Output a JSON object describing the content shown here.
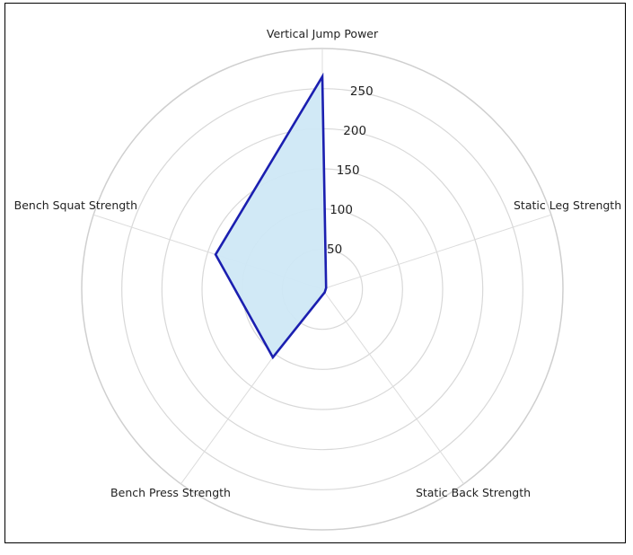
{
  "chart_data": {
    "type": "radar",
    "title": "",
    "axes": [
      "Vertical Jump Power",
      "Static Leg Strength",
      "Static Back Strength",
      "Bench Press Strength",
      "Bench Squat Strength"
    ],
    "series": [
      {
        "values": [
          265,
          5,
          5,
          105,
          140
        ],
        "color": "#1b1fb0",
        "fill": "#cfe8f6"
      }
    ],
    "rlim": [
      0,
      300
    ],
    "ring_values": [
      50,
      100,
      150,
      200,
      250,
      300
    ],
    "tick_labels": [
      "50",
      "100",
      "150",
      "200",
      "250"
    ],
    "grid": true,
    "start_angle": "top",
    "direction": "clockwise"
  }
}
